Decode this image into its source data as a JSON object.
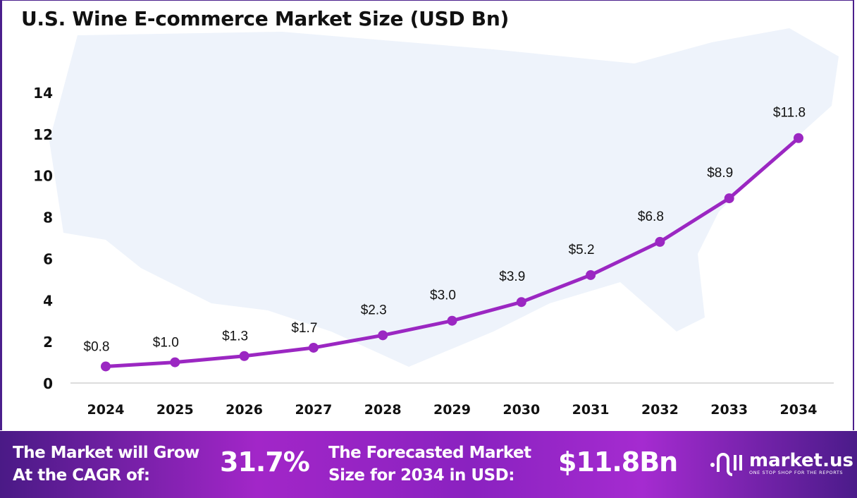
{
  "title": "U.S. Wine E-commerce Market Size (USD Bn)",
  "chart_data": {
    "type": "line",
    "title": "U.S. Wine E-commerce Market Size (USD Bn)",
    "categories": [
      "2024",
      "2025",
      "2026",
      "2027",
      "2028",
      "2029",
      "2030",
      "2031",
      "2032",
      "2033",
      "2034"
    ],
    "series": [
      {
        "values": [
          0.8,
          1.0,
          1.3,
          1.7,
          2.3,
          3.0,
          3.9,
          5.2,
          6.8,
          8.9,
          11.8
        ]
      }
    ],
    "data_labels": [
      "$0.8",
      "$1.0",
      "$1.3",
      "$1.7",
      "$2.3",
      "$3.0",
      "$3.9",
      "$5.2",
      "$6.8",
      "$8.9",
      "$11.8"
    ],
    "yticks": [
      "0",
      "2",
      "4",
      "6",
      "8",
      "10",
      "12",
      "14"
    ],
    "ylim": [
      0,
      14
    ],
    "grid": false,
    "line_color": "#9b27c2"
  },
  "footer": {
    "cagr_label_1": "The Market will Grow",
    "cagr_label_2": "At the CAGR of:",
    "cagr_value": "31.7%",
    "forecast_label_1": "The Forecasted Market",
    "forecast_label_2": "Size for 2034 in USD:",
    "forecast_value": "$11.8Bn",
    "logo_name": "market.us",
    "logo_tagline": "ONE STOP SHOP FOR THE REPORTS"
  }
}
